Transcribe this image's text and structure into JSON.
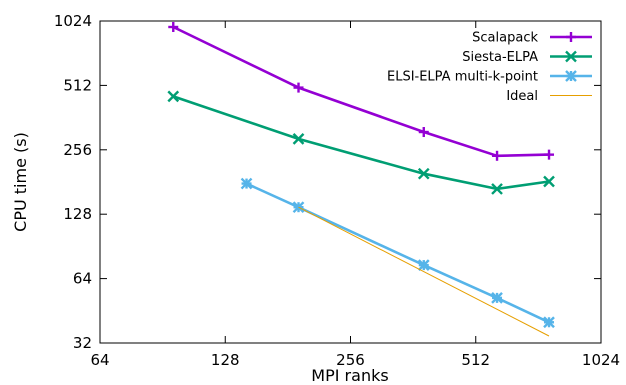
{
  "chart_data": {
    "type": "line",
    "xlabel": "MPI ranks",
    "ylabel": "CPU time (s)",
    "x_scale": "log2",
    "y_scale": "log2",
    "xlim": [
      64,
      1024
    ],
    "ylim": [
      32,
      1024
    ],
    "x_ticks": [
      64,
      128,
      256,
      512,
      1024
    ],
    "y_ticks": [
      32,
      64,
      128,
      256,
      512,
      1024
    ],
    "x_tick_labels": [
      "64",
      "128",
      "256",
      "512",
      "1024"
    ],
    "y_tick_labels": [
      "32",
      "64",
      "128",
      "256",
      "512",
      "1024"
    ],
    "legend_position": "top-right",
    "grid": false,
    "series": [
      {
        "name": "Scalapack",
        "color": "#9400d3",
        "marker": "plus",
        "points": [
          [
            96,
            960
          ],
          [
            192,
            500
          ],
          [
            384,
            310
          ],
          [
            576,
            240
          ],
          [
            768,
            243
          ]
        ]
      },
      {
        "name": "Siesta-ELPA",
        "color": "#009e73",
        "marker": "x",
        "points": [
          [
            96,
            455
          ],
          [
            192,
            288
          ],
          [
            384,
            198
          ],
          [
            576,
            168
          ],
          [
            768,
            182
          ]
        ]
      },
      {
        "name": "ELSI-ELPA multi-k-point",
        "color": "#56b4e9",
        "marker": "star",
        "points": [
          [
            144,
            178
          ],
          [
            192,
            138
          ],
          [
            384,
            74
          ],
          [
            576,
            52
          ],
          [
            768,
            40
          ]
        ]
      },
      {
        "name": "Ideal",
        "color": "#e69f00",
        "marker": "none",
        "points": [
          [
            192,
            138
          ],
          [
            768,
            34.5
          ]
        ]
      }
    ]
  }
}
